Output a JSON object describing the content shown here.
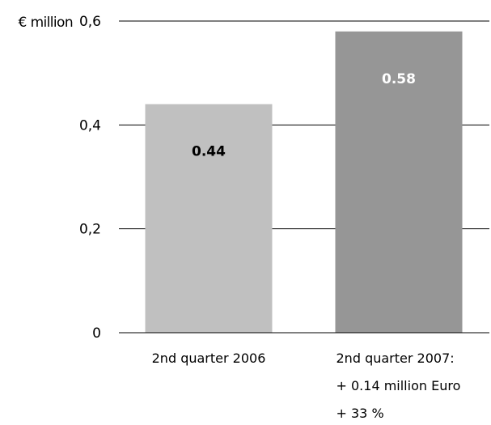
{
  "chart_data": {
    "type": "bar",
    "unit_label": "€ million",
    "categories": [
      [
        "2nd quarter 2006"
      ],
      [
        "2nd quarter 2007:",
        "+ 0.14 million Euro",
        "+ 33 %"
      ]
    ],
    "values": [
      0.44,
      0.58
    ],
    "value_labels": [
      "0.44",
      "0.58"
    ],
    "yticks": [
      0,
      0.2,
      0.4,
      0.6
    ],
    "ytick_labels": [
      "0",
      "0,2",
      "0,4",
      "0,6"
    ],
    "ylim": [
      0,
      0.6
    ],
    "grid": true,
    "colors": {
      "bars": [
        "#c0c0c0",
        "#969696"
      ],
      "value_labels": [
        "#000000",
        "#ffffff"
      ],
      "gridline": "#000000"
    }
  }
}
